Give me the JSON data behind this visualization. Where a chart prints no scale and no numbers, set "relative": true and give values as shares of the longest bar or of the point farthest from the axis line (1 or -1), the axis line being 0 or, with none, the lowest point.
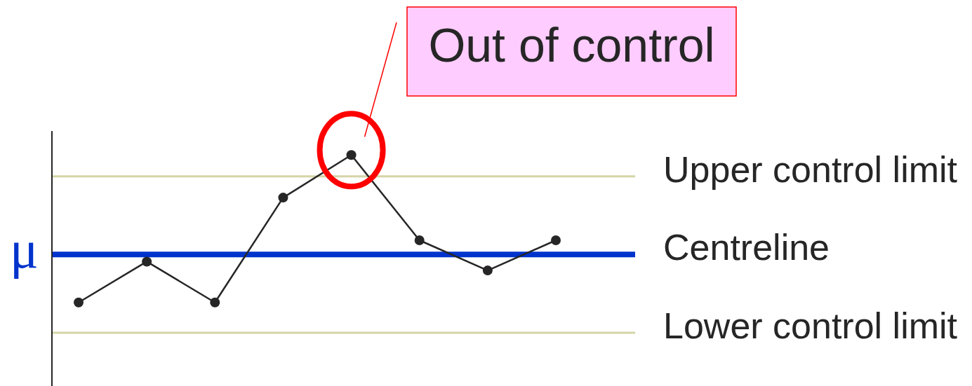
{
  "chart_data": {
    "type": "line",
    "categories": [
      null,
      null,
      null,
      null,
      null,
      null,
      null,
      null
    ],
    "values": [
      0.17,
      0.4,
      0.17,
      0.76,
      1,
      0.52,
      0.35,
      0.52
    ],
    "color": "#262626",
    "relative": true,
    "marker": "circle",
    "line_style": "solid",
    "ylabel": "μ",
    "ref_lines": [
      {
        "axis": "y",
        "value": 0.88,
        "label": "Upper control limit",
        "color": "#d4d4a8"
      },
      {
        "axis": "y",
        "value": 0.44,
        "label": "Centreline",
        "color": "#0033cc"
      },
      {
        "axis": "y",
        "value": 0,
        "label": "Lower control limit",
        "color": "#d4d4a8"
      }
    ],
    "annotations": [
      "Out of control"
    ]
  }
}
